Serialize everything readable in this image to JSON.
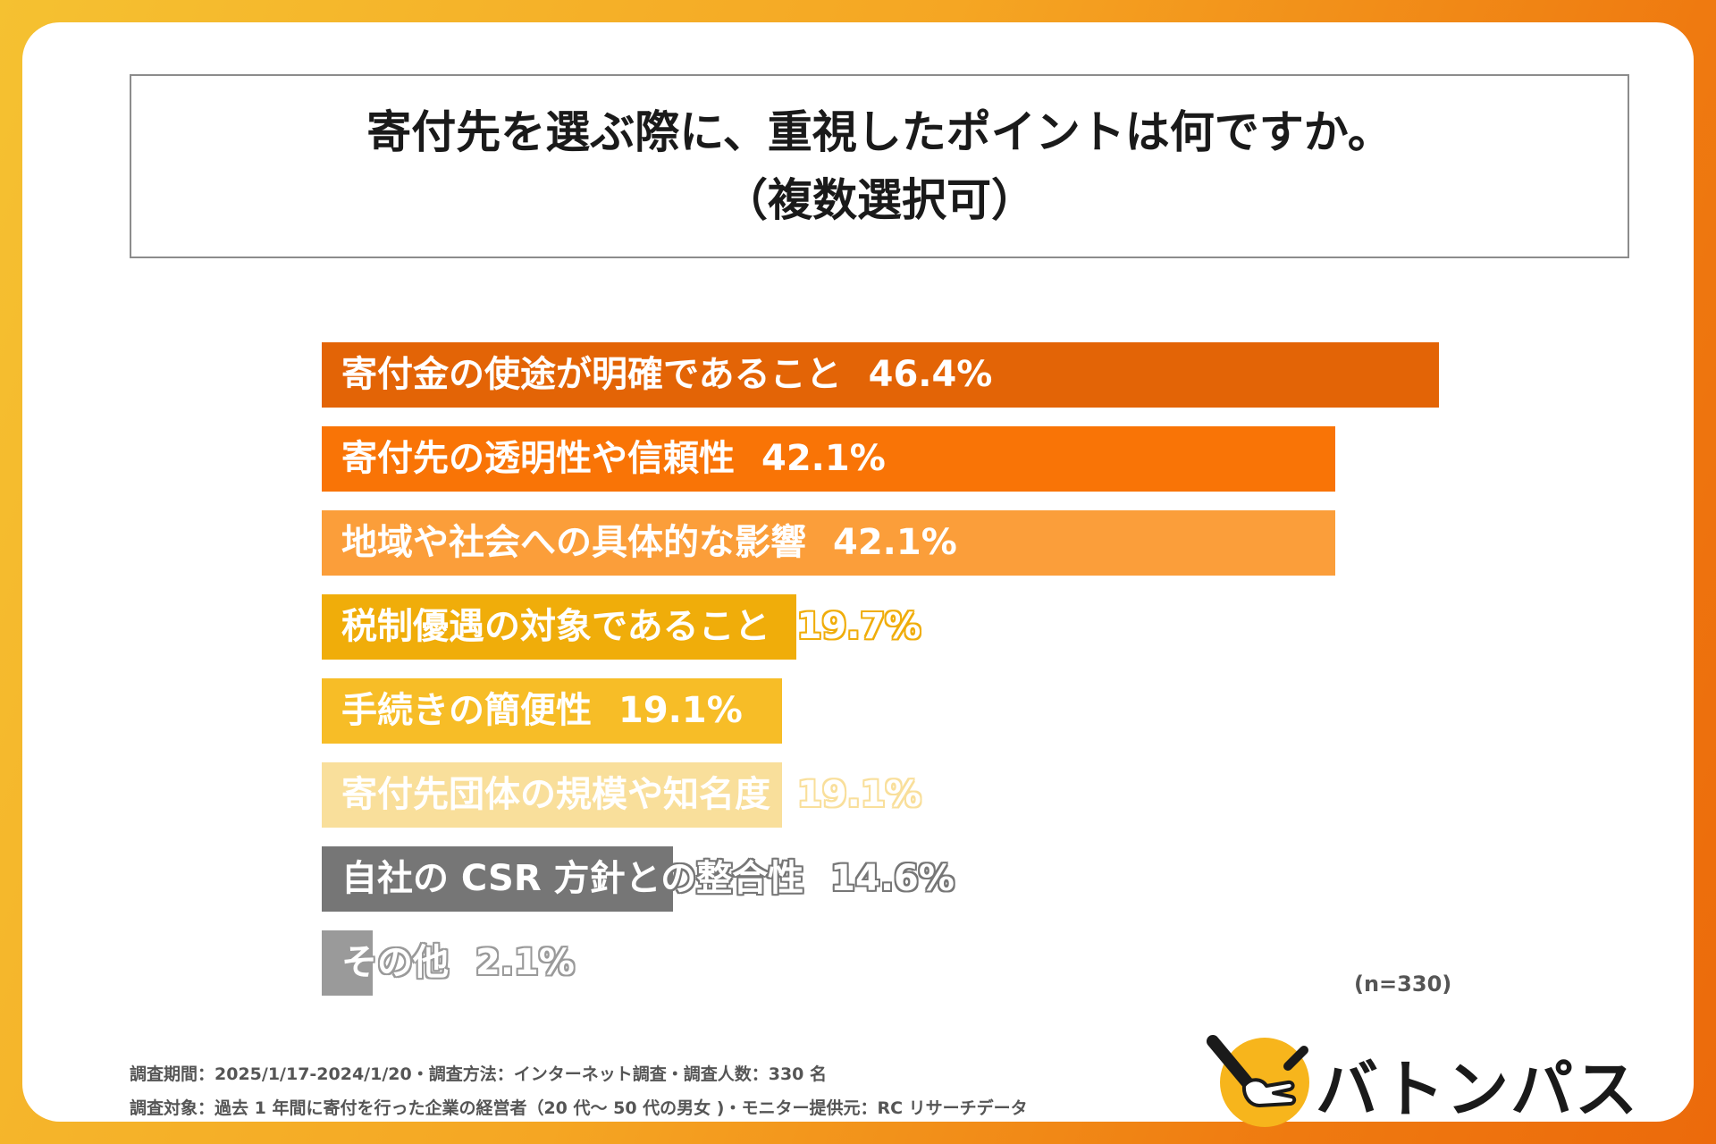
{
  "title": {
    "line1": "寄付先を選ぶ際に、重視したポイントは何ですか。",
    "line2": "（複数選択可）"
  },
  "chart_data": {
    "type": "bar",
    "orientation": "horizontal",
    "categories": [
      "寄付金の使途が明確であること",
      "寄付先の透明性や信頼性",
      "地域や社会への具体的な影響",
      "税制優遇の対象であること",
      "手続きの簡便性",
      "寄付先団体の規模や知名度",
      "自社の CSR 方針との整合性",
      "その他"
    ],
    "values": [
      46.4,
      42.1,
      42.1,
      19.7,
      19.1,
      19.1,
      14.6,
      2.1
    ],
    "value_labels": [
      "46.4%",
      "42.1%",
      "42.1%",
      "19.7%",
      "19.1%",
      "19.1%",
      "14.6%",
      "2.1%"
    ],
    "colors": [
      "#e36406",
      "#f97406",
      "#fb9e3a",
      "#f0ad0a",
      "#f7bd27",
      "#f9df9b",
      "#767676",
      "#9a9a9a"
    ],
    "xlim": [
      0,
      46.4
    ],
    "unit": "%"
  },
  "sample_size": "(n=330)",
  "footer": {
    "line1": "調査期間：2025/1/17-2024/1/20・調査方法：インターネット調査・調査人数：330 名",
    "line2": "調査対象：過去 1 年間に寄付を行った企業の経営者（20 代～ 50 代の男女 )・モニター提供元：RC リサーチデータ"
  },
  "logo": {
    "text": "バトンパス",
    "icon": "baton-hand-icon",
    "circle_color": "#f7b51c"
  }
}
